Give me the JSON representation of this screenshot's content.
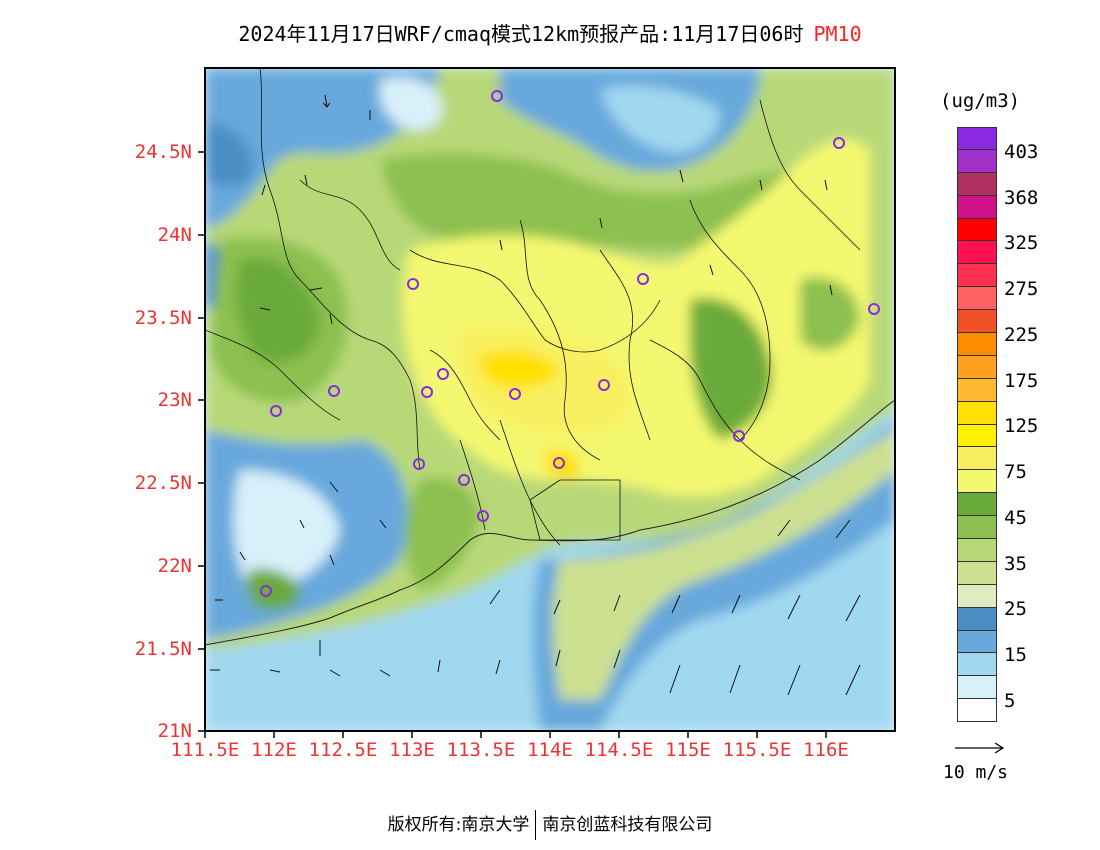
{
  "title": {
    "main": "2024年11月17日WRF/cmaq模式12km预报产品:11月17日06时",
    "pollutant": "PM10"
  },
  "map": {
    "y_ticks": [
      "24.5N",
      "24N",
      "23.5N",
      "23N",
      "22.5N",
      "22N",
      "21.5N",
      "21N"
    ],
    "x_ticks": [
      "111.5E",
      "112E",
      "112.5E",
      "113E",
      "113.5E",
      "114E",
      "114.5E",
      "115E",
      "115.5E",
      "116E"
    ],
    "lon_range": [
      111.5,
      116.5
    ],
    "lat_range": [
      21.0,
      25.0
    ]
  },
  "legend": {
    "unit": "(ug/m3)",
    "colors": [
      "#8a2be2",
      "#a030c8",
      "#b03060",
      "#d0108a",
      "#ff0000",
      "#ff1050",
      "#ff3050",
      "#ff6060",
      "#f05028",
      "#ff8c00",
      "#ffa020",
      "#ffb830",
      "#ffe000",
      "#fff000",
      "#f8f060",
      "#f4f870",
      "#6aaa3a",
      "#8cc050",
      "#b8d878",
      "#cce090",
      "#e0ecc0",
      "#4c8ec4",
      "#68a8dc",
      "#a0d8f0",
      "#d8f0fa",
      "#ffffff"
    ],
    "labels": [
      "403",
      "368",
      "325",
      "275",
      "225",
      "175",
      "125",
      "75",
      "45",
      "35",
      "25",
      "15",
      "5"
    ]
  },
  "wind": {
    "reference_label": "10 m/s"
  },
  "footer": {
    "left": "版权所有:南京大学",
    "right": "南京创蓝科技有限公司"
  }
}
